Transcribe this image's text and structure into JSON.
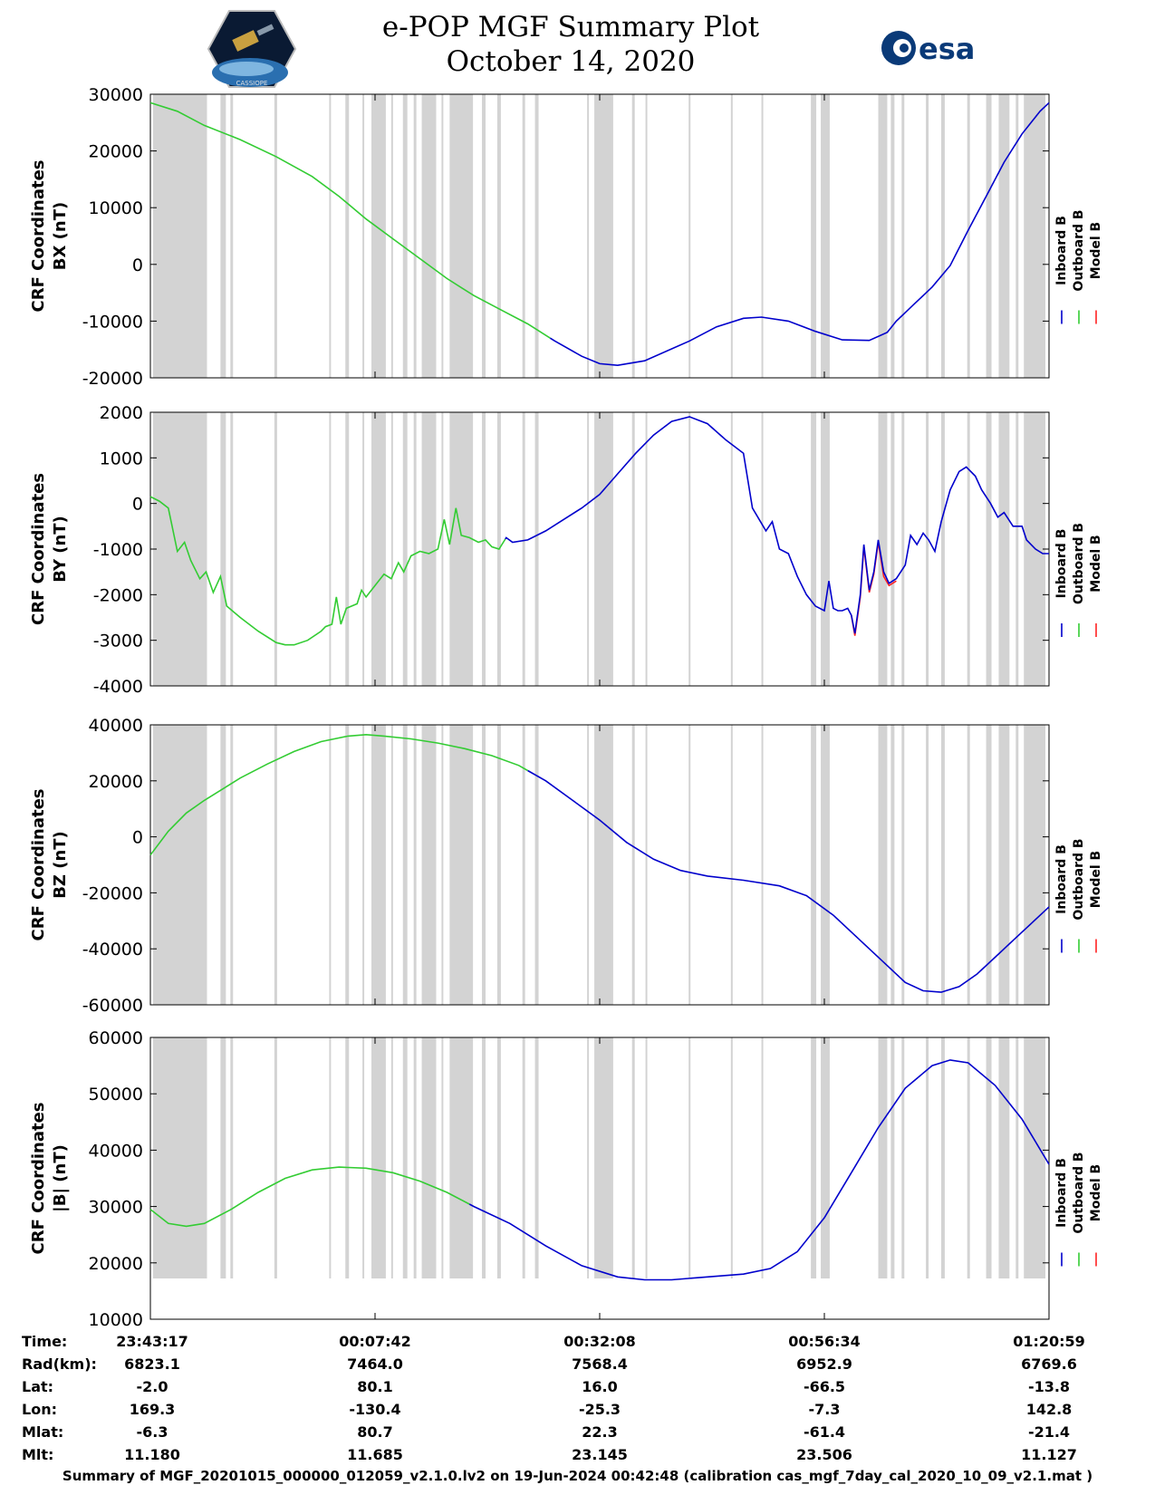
{
  "header": {
    "title_line1": "e-POP MGF Summary Plot",
    "title_line2": "October 14, 2020",
    "logo_left_text": "CASSIOPE",
    "logo_right_text": "esa"
  },
  "legend": {
    "labels": [
      "Inboard B",
      "Outboard B",
      "Model B"
    ],
    "colors": [
      "#0000cc",
      "#33cc33",
      "#ff2222"
    ]
  },
  "colors": {
    "inboard": "#0000cc",
    "outboard": "#33cc33",
    "model": "#ff2222",
    "shade": "#d3d3d3"
  },
  "ephemeris": {
    "row_labels": [
      "Time:",
      "Rad(km):",
      "Lat:",
      "Lon:",
      "Mlat:",
      "Mlt:"
    ],
    "columns": [
      [
        "23:43:17",
        "6823.1",
        "-2.0",
        "169.3",
        "-6.3",
        "11.180"
      ],
      [
        "00:07:42",
        "7464.0",
        "80.1",
        "-130.4",
        "80.7",
        "11.685"
      ],
      [
        "00:32:08",
        "7568.4",
        "16.0",
        "-25.3",
        "22.3",
        "23.145"
      ],
      [
        "00:56:34",
        "6952.9",
        "-66.5",
        "-7.3",
        "-61.4",
        "23.506"
      ],
      [
        "01:20:59",
        "6769.6",
        "-13.8",
        "142.8",
        "-21.4",
        "11.127"
      ]
    ]
  },
  "footer": "Summary of MGF_20201015_000000_012059_v2.1.0.lv2 on 19-Jun-2024 00:42:48 (calibration cas_mgf_7day_cal_2020_10_09_v2.1.mat )",
  "chart_data": [
    {
      "type": "line",
      "ylabel_lines": [
        "CRF Coordinates",
        "BX (nT)"
      ],
      "ylim": [
        -20000,
        30000
      ],
      "yticks": [
        30000,
        20000,
        10000,
        0,
        -10000,
        -20000
      ],
      "xlim": [
        0,
        100
      ],
      "xtick_positions": [
        25,
        50,
        75
      ],
      "switch_x": 44.5,
      "points": [
        [
          0,
          28500
        ],
        [
          3,
          27000
        ],
        [
          6,
          24500
        ],
        [
          10,
          22000
        ],
        [
          14,
          19000
        ],
        [
          18,
          15500
        ],
        [
          21,
          12000
        ],
        [
          24,
          8000
        ],
        [
          27,
          4500
        ],
        [
          30,
          1000
        ],
        [
          33,
          -2500
        ],
        [
          36,
          -5500
        ],
        [
          39,
          -8000
        ],
        [
          42,
          -10500
        ],
        [
          45,
          -13500
        ],
        [
          48,
          -16200
        ],
        [
          50,
          -17500
        ],
        [
          52,
          -17800
        ],
        [
          55,
          -17000
        ],
        [
          60,
          -13500
        ],
        [
          63,
          -11000
        ],
        [
          66,
          -9500
        ],
        [
          68,
          -9300
        ],
        [
          71,
          -10000
        ],
        [
          74,
          -11800
        ],
        [
          77,
          -13300
        ],
        [
          80,
          -13400
        ],
        [
          82,
          -12000
        ],
        [
          83,
          -10000
        ],
        [
          85,
          -7000
        ],
        [
          87,
          -4000
        ],
        [
          89,
          -200
        ],
        [
          91,
          6000
        ],
        [
          93,
          12000
        ],
        [
          95,
          18000
        ],
        [
          97,
          23000
        ],
        [
          99,
          27000
        ],
        [
          100,
          28500
        ]
      ],
      "model_points": []
    },
    {
      "type": "line",
      "ylabel_lines": [
        "CRF Coordinates",
        "BY (nT)"
      ],
      "ylim": [
        -4000,
        2000
      ],
      "yticks": [
        2000,
        1000,
        0,
        -1000,
        -2000,
        -3000,
        -4000
      ],
      "xlim": [
        0,
        100
      ],
      "xtick_positions": [
        25,
        50,
        75
      ],
      "switch_x": 39.5,
      "points": [
        [
          0,
          150
        ],
        [
          1,
          50
        ],
        [
          2,
          -100
        ],
        [
          3,
          -1050
        ],
        [
          3.8,
          -850
        ],
        [
          4.5,
          -1250
        ],
        [
          5.5,
          -1650
        ],
        [
          6.2,
          -1500
        ],
        [
          7,
          -1950
        ],
        [
          7.8,
          -1600
        ],
        [
          8.5,
          -2250
        ],
        [
          10,
          -2500
        ],
        [
          12,
          -2800
        ],
        [
          14,
          -3050
        ],
        [
          15,
          -3100
        ],
        [
          16,
          -3100
        ],
        [
          17.5,
          -3000
        ],
        [
          19,
          -2800
        ],
        [
          19.5,
          -2700
        ],
        [
          20.2,
          -2650
        ],
        [
          20.7,
          -2050
        ],
        [
          21.2,
          -2650
        ],
        [
          21.8,
          -2300
        ],
        [
          23,
          -2200
        ],
        [
          23.5,
          -1900
        ],
        [
          24,
          -2050
        ],
        [
          25,
          -1800
        ],
        [
          26,
          -1550
        ],
        [
          26.8,
          -1650
        ],
        [
          27.6,
          -1300
        ],
        [
          28.2,
          -1500
        ],
        [
          29,
          -1150
        ],
        [
          30,
          -1050
        ],
        [
          31,
          -1100
        ],
        [
          32,
          -1000
        ],
        [
          32.7,
          -350
        ],
        [
          33.3,
          -900
        ],
        [
          34,
          -100
        ],
        [
          34.6,
          -700
        ],
        [
          35.5,
          -750
        ],
        [
          36.5,
          -850
        ],
        [
          37.3,
          -800
        ],
        [
          38,
          -950
        ],
        [
          38.8,
          -1000
        ],
        [
          39.6,
          -750
        ],
        [
          40.3,
          -850
        ],
        [
          42,
          -800
        ],
        [
          44,
          -600
        ],
        [
          46,
          -350
        ],
        [
          48,
          -100
        ],
        [
          50,
          200
        ],
        [
          52,
          650
        ],
        [
          54,
          1100
        ],
        [
          56,
          1500
        ],
        [
          58,
          1800
        ],
        [
          60,
          1900
        ],
        [
          62,
          1750
        ],
        [
          64,
          1400
        ],
        [
          66,
          1100
        ],
        [
          67,
          -100
        ],
        [
          68.5,
          -600
        ],
        [
          69.2,
          -400
        ],
        [
          70,
          -1000
        ],
        [
          71,
          -1100
        ],
        [
          72,
          -1600
        ],
        [
          73,
          -2000
        ],
        [
          74,
          -2250
        ],
        [
          75,
          -2350
        ],
        [
          75.5,
          -1700
        ],
        [
          76,
          -2300
        ],
        [
          76.5,
          -2350
        ],
        [
          77,
          -2350
        ],
        [
          77.6,
          -2300
        ],
        [
          78,
          -2450
        ],
        [
          78.4,
          -2850
        ],
        [
          79,
          -2000
        ],
        [
          79.4,
          -900
        ],
        [
          80,
          -1900
        ],
        [
          80.5,
          -1500
        ],
        [
          81,
          -800
        ],
        [
          81.6,
          -1500
        ],
        [
          82.2,
          -1750
        ],
        [
          83,
          -1650
        ],
        [
          84,
          -1350
        ],
        [
          84.6,
          -700
        ],
        [
          85.3,
          -900
        ],
        [
          86,
          -650
        ],
        [
          86.6,
          -800
        ],
        [
          87.3,
          -1050
        ],
        [
          88,
          -400
        ],
        [
          89,
          300
        ],
        [
          90,
          700
        ],
        [
          90.8,
          800
        ],
        [
          91.8,
          600
        ],
        [
          92.5,
          300
        ],
        [
          93.5,
          0
        ],
        [
          94.3,
          -300
        ],
        [
          95,
          -200
        ],
        [
          96,
          -500
        ],
        [
          97,
          -500
        ],
        [
          97.5,
          -800
        ],
        [
          98.5,
          -1000
        ],
        [
          99.3,
          -1100
        ],
        [
          100,
          -1100
        ]
      ],
      "model_points": [
        [
          78,
          -2450
        ],
        [
          78.4,
          -2900
        ],
        [
          79,
          -2050
        ],
        [
          79.4,
          -950
        ],
        [
          80,
          -1950
        ],
        [
          80.5,
          -1550
        ],
        [
          81,
          -850
        ],
        [
          81.6,
          -1600
        ],
        [
          82.2,
          -1800
        ],
        [
          83,
          -1700
        ]
      ]
    },
    {
      "type": "line",
      "ylabel_lines": [
        "CRF Coordinates",
        "BZ (nT)"
      ],
      "ylim": [
        -60000,
        40000
      ],
      "yticks": [
        40000,
        20000,
        0,
        -20000,
        -40000,
        -60000
      ],
      "xlim": [
        0,
        100
      ],
      "xtick_positions": [
        25,
        50,
        75
      ],
      "switch_x": 42,
      "points": [
        [
          0,
          -6500
        ],
        [
          2,
          2000
        ],
        [
          4,
          8500
        ],
        [
          6,
          13000
        ],
        [
          8,
          17000
        ],
        [
          10,
          21000
        ],
        [
          13,
          26000
        ],
        [
          16,
          30500
        ],
        [
          19,
          34000
        ],
        [
          22,
          36000
        ],
        [
          24,
          36500
        ],
        [
          26,
          36000
        ],
        [
          29,
          35000
        ],
        [
          32,
          33500
        ],
        [
          35,
          31500
        ],
        [
          38,
          29000
        ],
        [
          41,
          25500
        ],
        [
          44,
          20000
        ],
        [
          47,
          13000
        ],
        [
          50,
          6000
        ],
        [
          53,
          -2000
        ],
        [
          56,
          -8000
        ],
        [
          59,
          -12000
        ],
        [
          62,
          -14000
        ],
        [
          66,
          -15500
        ],
        [
          70,
          -17500
        ],
        [
          73,
          -21000
        ],
        [
          76,
          -28000
        ],
        [
          79,
          -37000
        ],
        [
          82,
          -46000
        ],
        [
          84,
          -52000
        ],
        [
          86,
          -55000
        ],
        [
          88,
          -55500
        ],
        [
          90,
          -53500
        ],
        [
          92,
          -49000
        ],
        [
          94,
          -43000
        ],
        [
          96,
          -37000
        ],
        [
          98,
          -31000
        ],
        [
          100,
          -25000
        ]
      ],
      "model_points": []
    },
    {
      "type": "line",
      "ylabel_lines": [
        "CRF Coordinates",
        "|B| (nT)"
      ],
      "ylim": [
        10000,
        60000
      ],
      "yticks": [
        60000,
        50000,
        40000,
        30000,
        20000,
        10000
      ],
      "xlim": [
        0,
        100
      ],
      "xtick_positions": [
        25,
        50,
        75
      ],
      "switch_x": 35.5,
      "points": [
        [
          0,
          29500
        ],
        [
          2,
          27000
        ],
        [
          4,
          26500
        ],
        [
          6,
          27000
        ],
        [
          9,
          29500
        ],
        [
          12,
          32500
        ],
        [
          15,
          35000
        ],
        [
          18,
          36500
        ],
        [
          21,
          37000
        ],
        [
          24,
          36800
        ],
        [
          27,
          36000
        ],
        [
          30,
          34500
        ],
        [
          33,
          32500
        ],
        [
          36,
          30000
        ],
        [
          40,
          27000
        ],
        [
          44,
          23000
        ],
        [
          48,
          19500
        ],
        [
          52,
          17500
        ],
        [
          55,
          17000
        ],
        [
          58,
          17000
        ],
        [
          62,
          17500
        ],
        [
          66,
          18000
        ],
        [
          69,
          19000
        ],
        [
          72,
          22000
        ],
        [
          75,
          28000
        ],
        [
          78,
          36000
        ],
        [
          81,
          44000
        ],
        [
          84,
          51000
        ],
        [
          87,
          55000
        ],
        [
          89,
          56000
        ],
        [
          91,
          55500
        ],
        [
          94,
          51500
        ],
        [
          97,
          45500
        ],
        [
          100,
          37500
        ]
      ],
      "model_points": []
    }
  ]
}
